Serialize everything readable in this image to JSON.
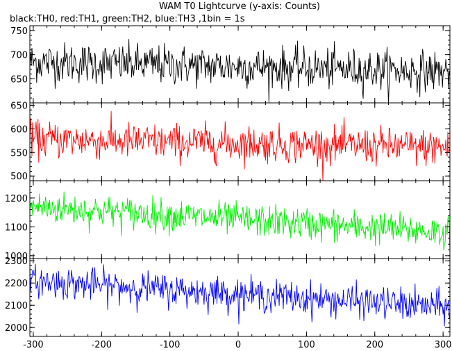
{
  "chart_data": {
    "type": "line",
    "title": "WAM T0 Lightcurve (y-axis: Counts)",
    "subtitle": "black:TH0, red:TH1, green:TH2, blue:TH3 ,1bin = 1s",
    "x_range": [
      -305,
      310
    ],
    "x_ticks": [
      -300,
      -200,
      -100,
      0,
      100,
      200,
      300
    ],
    "bin_seconds": 1,
    "panels": [
      {
        "name": "TH0",
        "color": "#000000",
        "ylim": [
          600,
          760
        ],
        "y_ticks": [
          650,
          700,
          750
        ],
        "baseline_start": 685,
        "baseline_end": 665,
        "noise": 26
      },
      {
        "name": "TH1",
        "color": "#ff0000",
        "ylim": [
          490,
          655
        ],
        "y_ticks": [
          500,
          550,
          600,
          650
        ],
        "baseline_start": 578,
        "baseline_end": 560,
        "noise": 24
      },
      {
        "name": "TH2",
        "color": "#00ee00",
        "ylim": [
          990,
          1260
        ],
        "y_ticks": [
          1000,
          1100,
          1200
        ],
        "baseline_start": 1170,
        "baseline_end": 1080,
        "noise": 35
      },
      {
        "name": "TH3",
        "color": "#0000ff",
        "ylim": [
          1960,
          2310
        ],
        "y_ticks": [
          2000,
          2100,
          2200,
          2300
        ],
        "baseline_start": 2210,
        "baseline_end": 2090,
        "noise": 45
      }
    ]
  }
}
